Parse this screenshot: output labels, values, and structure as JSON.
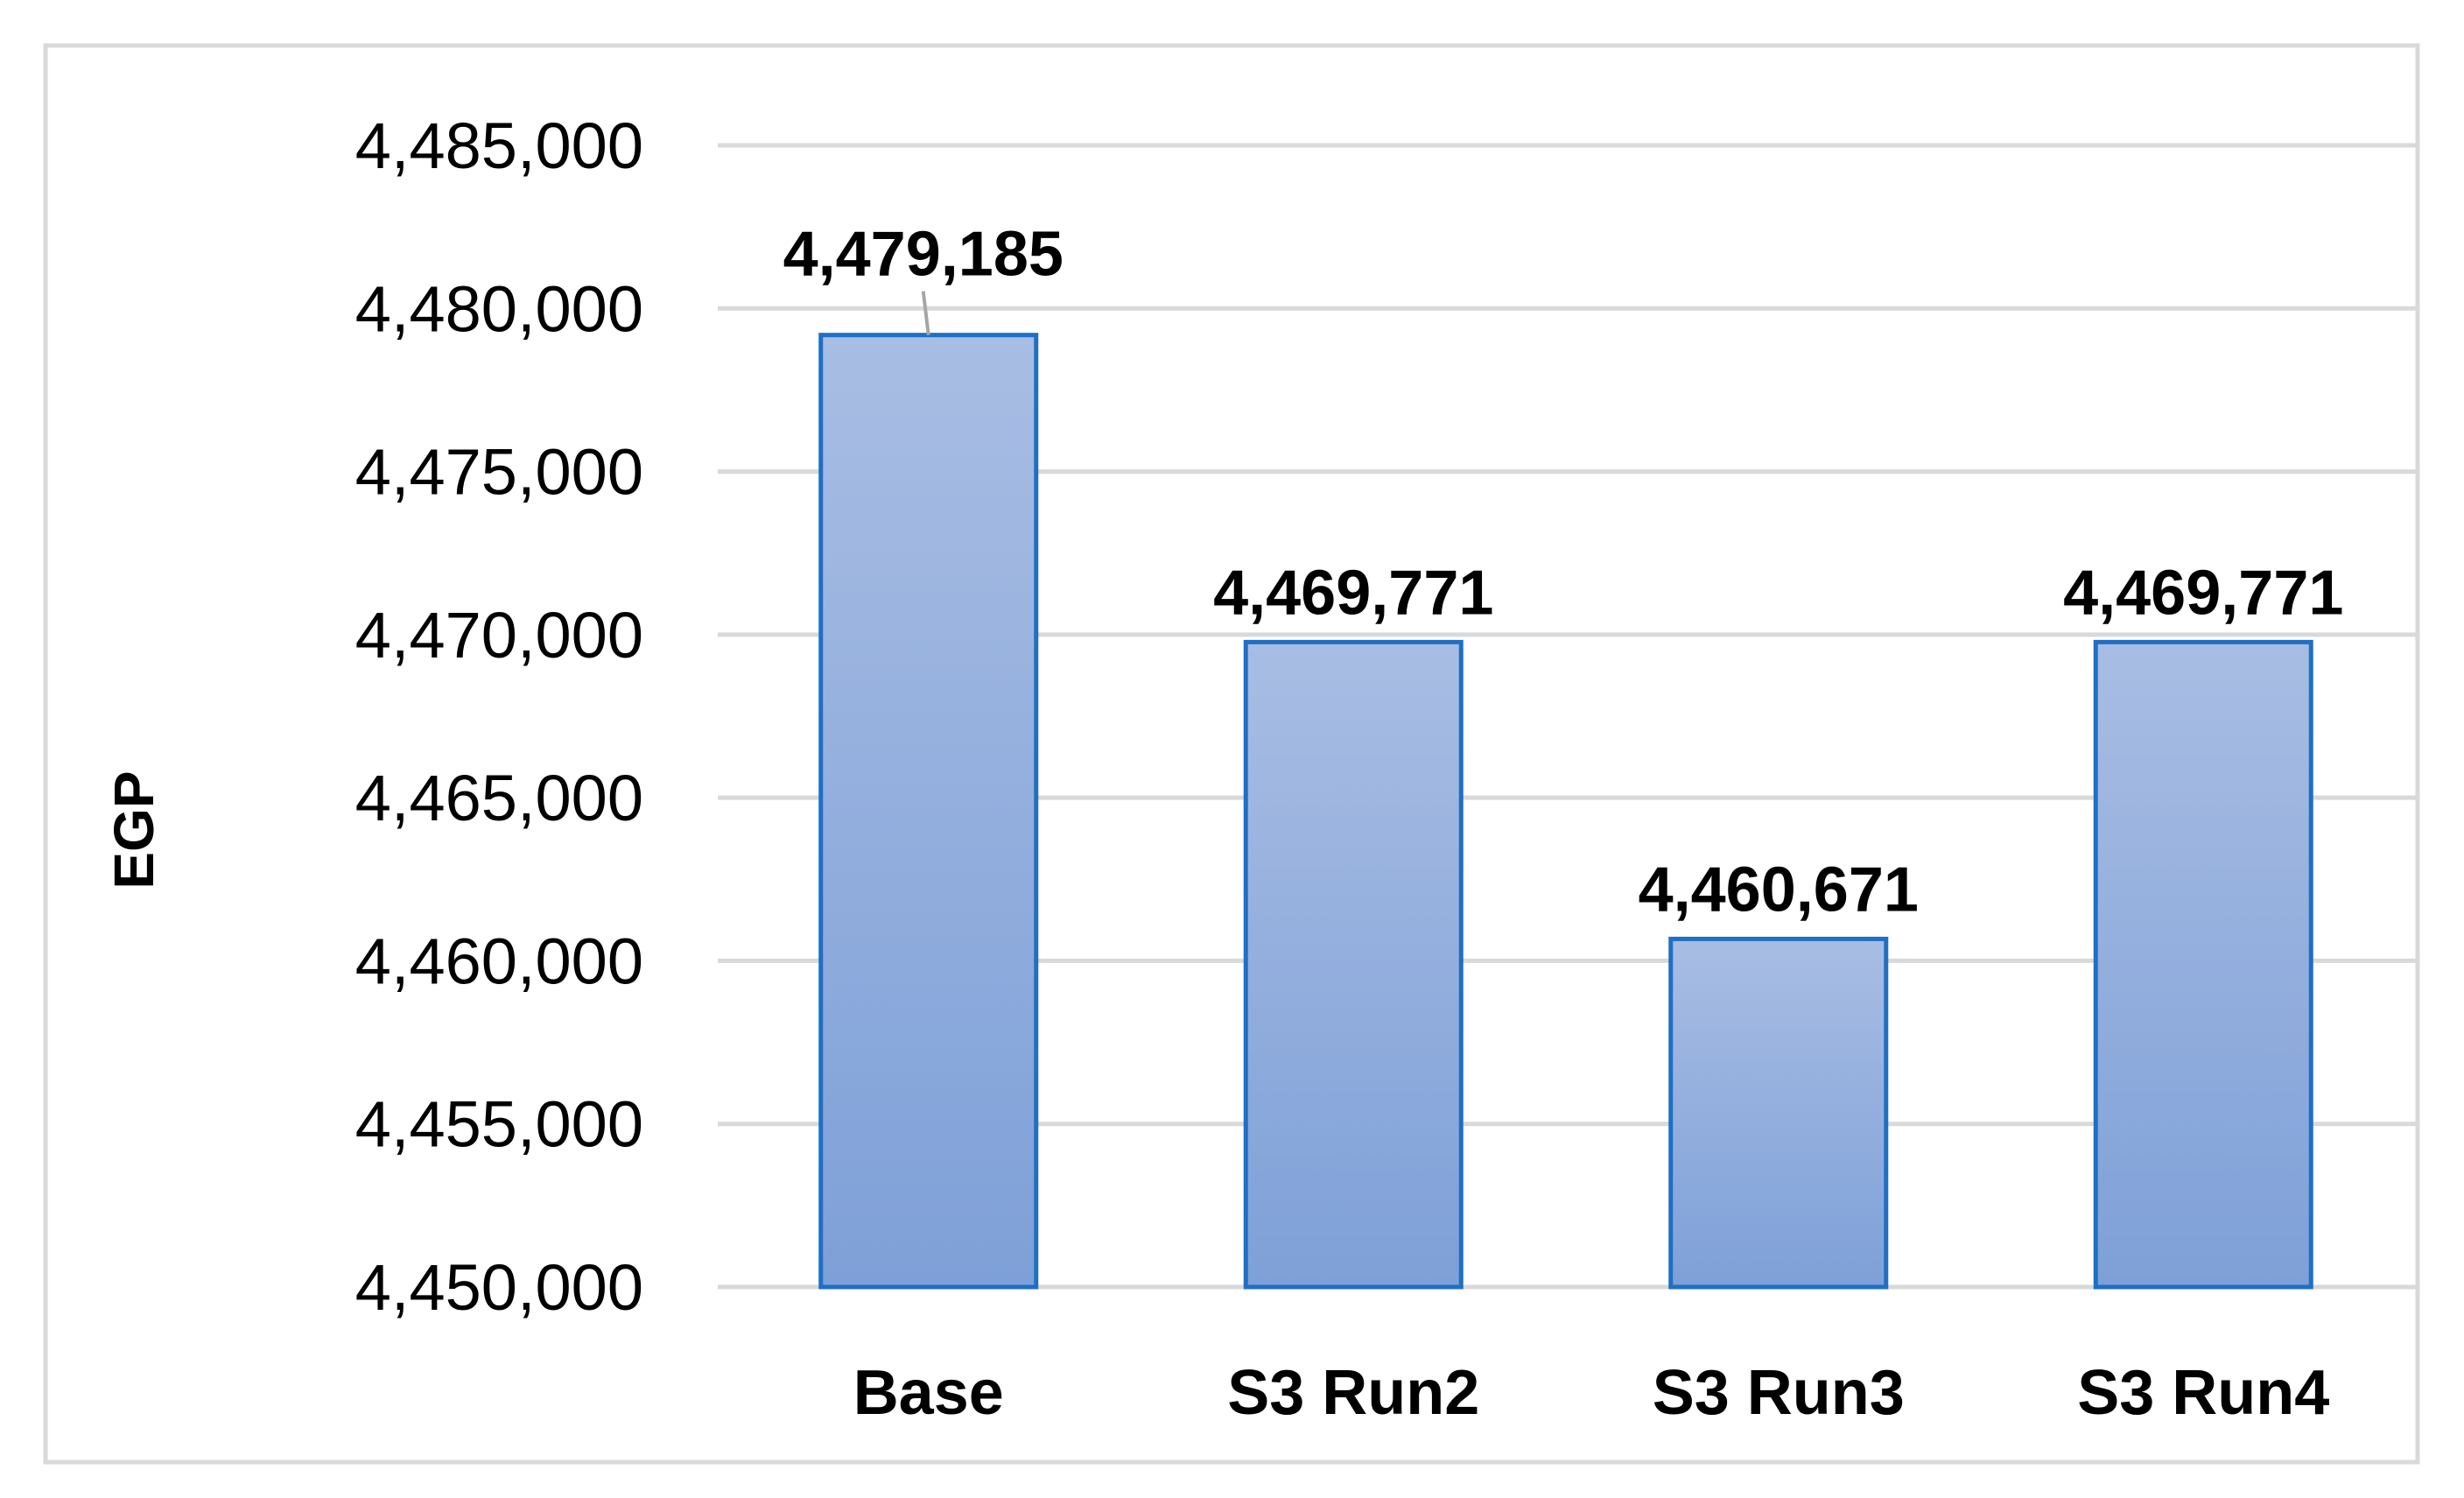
{
  "chart_data": {
    "type": "bar",
    "categories": [
      "Base",
      "S3 Run2",
      "S3 Run3",
      "S3 Run4"
    ],
    "values": [
      4479185,
      4469771,
      4460671,
      4469771
    ],
    "data_labels": [
      "4,479,185",
      "4,469,771",
      "4,460,671",
      "4,469,771"
    ],
    "title": "",
    "xlabel": "",
    "ylabel": "EGP",
    "ylim": [
      4450000,
      4485000
    ],
    "yticks": [
      4450000,
      4455000,
      4460000,
      4465000,
      4470000,
      4475000,
      4480000,
      4485000
    ],
    "ytick_labels": [
      "4,450,000",
      "4,455,000",
      "4,460,000",
      "4,465,000",
      "4,470,000",
      "4,475,000",
      "4,480,000",
      "4,485,000"
    ],
    "grid": true,
    "legend": "none",
    "colors": {
      "bar_fill_top": "#a8bde3",
      "bar_fill_bottom": "#7ea0d8",
      "bar_stroke": "#1f6fc4",
      "grid": "#d9d9d9",
      "frame": "#d9d9d9",
      "leader_line": "#a6a6a6"
    }
  }
}
